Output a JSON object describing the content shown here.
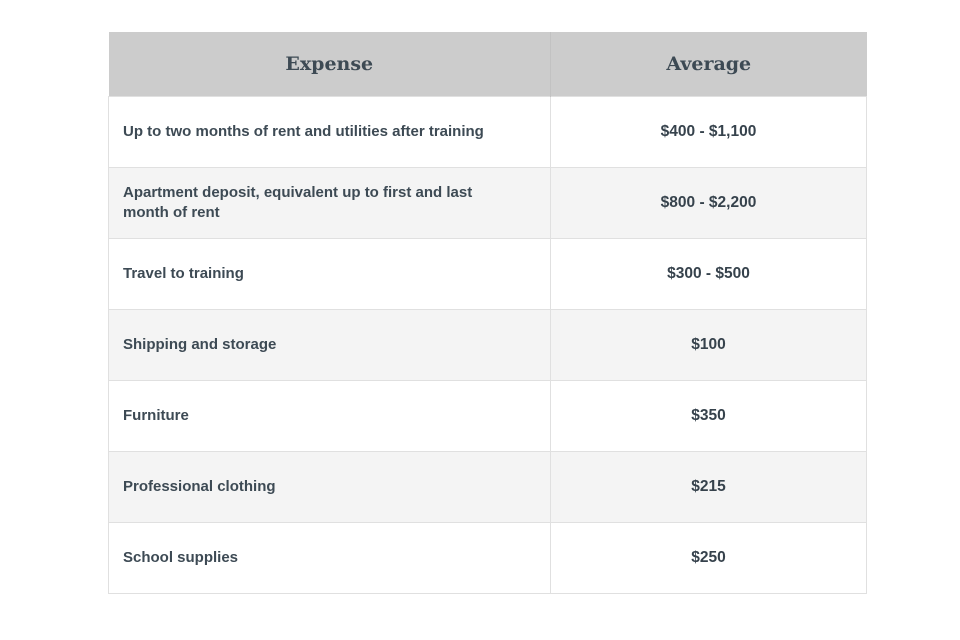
{
  "table": {
    "headers": {
      "expense": "Expense",
      "average": "Average"
    },
    "rows": [
      {
        "expense": "Up to two months of rent and utilities after training",
        "average": "$400 - $1,100"
      },
      {
        "expense": "Apartment deposit, equivalent up to first and last month of rent",
        "average": "$800 - $2,200"
      },
      {
        "expense": "Travel to training",
        "average": "$300 - $500"
      },
      {
        "expense": "Shipping and storage",
        "average": "$100"
      },
      {
        "expense": "Furniture",
        "average": "$350"
      },
      {
        "expense": "Professional clothing",
        "average": "$215"
      },
      {
        "expense": "School supplies",
        "average": "$250"
      }
    ]
  }
}
